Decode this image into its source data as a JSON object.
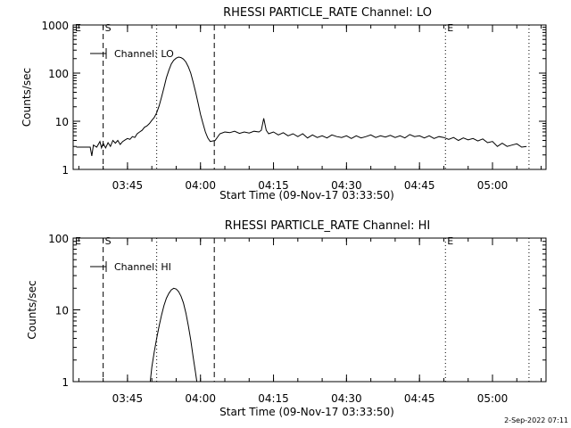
{
  "footer_timestamp": "2-Sep-2022 07:11",
  "chart_data": [
    {
      "type": "line",
      "title": "RHESSI PARTICLE_RATE Channel: LO",
      "xlabel": "Start Time (09-Nov-17 03:33:50)",
      "ylabel": "Counts/sec",
      "yscale": "log",
      "ylim": [
        1,
        1000
      ],
      "yticks": [
        "1",
        "10",
        "100",
        "1000"
      ],
      "xticks": [
        "03:45",
        "04:00",
        "04:15",
        "04:30",
        "04:45",
        "05:00"
      ],
      "xlim": [
        "03:33:50",
        "05:11:00"
      ],
      "legend": {
        "label": "Channel: LO",
        "position": "top-left"
      },
      "markers": [
        {
          "label": "E",
          "time": "03:33:50",
          "style": "none"
        },
        {
          "label": "S",
          "time": "03:40:00",
          "style": "dashed"
        },
        {
          "label": "",
          "time": "03:51:00",
          "style": "dotted"
        },
        {
          "label": "",
          "time": "04:02:50",
          "style": "dashed"
        },
        {
          "label": "E",
          "time": "04:50:20",
          "style": "dotted"
        },
        {
          "label": "",
          "time": "05:07:30",
          "style": "dotted"
        }
      ],
      "series": [
        {
          "name": "Channel: LO",
          "points": [
            [
              "03:34:30",
              2.9
            ],
            [
              "03:35:30",
              2.9
            ],
            [
              "03:36:30",
              2.9
            ],
            [
              "03:37:20",
              2.9
            ],
            [
              "03:37:40",
              1.9
            ],
            [
              "03:38:00",
              3.2
            ],
            [
              "03:38:40",
              2.9
            ],
            [
              "03:39:20",
              3.8
            ],
            [
              "03:39:40",
              2.8
            ],
            [
              "03:40:00",
              3.5
            ],
            [
              "03:40:30",
              2.8
            ],
            [
              "03:41:00",
              3.6
            ],
            [
              "03:41:30",
              3.0
            ],
            [
              "03:42:00",
              4.0
            ],
            [
              "03:42:30",
              3.5
            ],
            [
              "03:43:00",
              4.0
            ],
            [
              "03:43:30",
              3.3
            ],
            [
              "03:44:00",
              3.8
            ],
            [
              "03:44:30",
              4.1
            ],
            [
              "03:45:00",
              4.4
            ],
            [
              "03:45:30",
              4.2
            ],
            [
              "03:46:00",
              4.8
            ],
            [
              "03:46:30",
              4.6
            ],
            [
              "03:47:00",
              5.5
            ],
            [
              "03:47:30",
              6.0
            ],
            [
              "03:48:00",
              6.5
            ],
            [
              "03:48:30",
              7.5
            ],
            [
              "03:49:00",
              8.0
            ],
            [
              "03:49:30",
              9.0
            ],
            [
              "03:50:00",
              10.5
            ],
            [
              "03:50:30",
              12
            ],
            [
              "03:51:00",
              15
            ],
            [
              "03:51:30",
              21
            ],
            [
              "03:52:00",
              32
            ],
            [
              "03:52:30",
              50
            ],
            [
              "03:53:00",
              80
            ],
            [
              "03:53:30",
              115
            ],
            [
              "03:54:00",
              155
            ],
            [
              "03:54:30",
              185
            ],
            [
              "03:55:00",
              205
            ],
            [
              "03:55:30",
              215
            ],
            [
              "03:56:00",
              210
            ],
            [
              "03:56:30",
              195
            ],
            [
              "03:57:00",
              170
            ],
            [
              "03:57:30",
              135
            ],
            [
              "03:58:00",
              100
            ],
            [
              "03:58:30",
              65
            ],
            [
              "03:59:00",
              40
            ],
            [
              "03:59:30",
              24
            ],
            [
              "04:00:00",
              14
            ],
            [
              "04:00:30",
              9
            ],
            [
              "04:01:00",
              6
            ],
            [
              "04:01:30",
              4.5
            ],
            [
              "04:02:00",
              3.8
            ],
            [
              "04:03:00",
              4.0
            ],
            [
              "04:04:00",
              5.5
            ],
            [
              "04:05:00",
              6.0
            ],
            [
              "04:06:00",
              5.8
            ],
            [
              "04:07:00",
              6.2
            ],
            [
              "04:08:00",
              5.6
            ],
            [
              "04:09:00",
              6.0
            ],
            [
              "04:10:00",
              5.7
            ],
            [
              "04:11:00",
              6.2
            ],
            [
              "04:12:00",
              6.0
            ],
            [
              "04:12:30",
              6.5
            ],
            [
              "04:13:00",
              11.5
            ],
            [
              "04:13:30",
              6.5
            ],
            [
              "04:14:00",
              5.5
            ],
            [
              "04:15:00",
              6.0
            ],
            [
              "04:16:00",
              5.2
            ],
            [
              "04:17:00",
              5.8
            ],
            [
              "04:18:00",
              5.0
            ],
            [
              "04:19:00",
              5.5
            ],
            [
              "04:20:00",
              4.8
            ],
            [
              "04:21:00",
              5.5
            ],
            [
              "04:22:00",
              4.5
            ],
            [
              "04:23:00",
              5.2
            ],
            [
              "04:24:00",
              4.6
            ],
            [
              "04:25:00",
              5.0
            ],
            [
              "04:26:00",
              4.5
            ],
            [
              "04:27:00",
              5.2
            ],
            [
              "04:28:00",
              4.8
            ],
            [
              "04:29:00",
              4.6
            ],
            [
              "04:30:00",
              5.0
            ],
            [
              "04:31:00",
              4.4
            ],
            [
              "04:32:00",
              5.0
            ],
            [
              "04:33:00",
              4.5
            ],
            [
              "04:34:00",
              4.8
            ],
            [
              "04:35:00",
              5.2
            ],
            [
              "04:36:00",
              4.6
            ],
            [
              "04:37:00",
              5.0
            ],
            [
              "04:38:00",
              4.7
            ],
            [
              "04:39:00",
              5.1
            ],
            [
              "04:40:00",
              4.6
            ],
            [
              "04:41:00",
              5.0
            ],
            [
              "04:42:00",
              4.5
            ],
            [
              "04:43:00",
              5.3
            ],
            [
              "04:44:00",
              4.8
            ],
            [
              "04:45:00",
              5.0
            ],
            [
              "04:46:00",
              4.5
            ],
            [
              "04:47:00",
              5.0
            ],
            [
              "04:48:00",
              4.4
            ],
            [
              "04:49:00",
              4.8
            ],
            [
              "04:50:00",
              4.6
            ],
            [
              "04:51:00",
              4.2
            ],
            [
              "04:52:00",
              4.6
            ],
            [
              "04:53:00",
              4.0
            ],
            [
              "04:54:00",
              4.5
            ],
            [
              "04:55:00",
              4.1
            ],
            [
              "04:56:00",
              4.4
            ],
            [
              "04:57:00",
              3.9
            ],
            [
              "04:58:00",
              4.3
            ],
            [
              "04:59:00",
              3.6
            ],
            [
              "05:00:00",
              3.8
            ],
            [
              "05:01:00",
              3.0
            ],
            [
              "05:02:00",
              3.5
            ],
            [
              "05:03:00",
              3.0
            ],
            [
              "05:04:00",
              3.2
            ],
            [
              "05:05:00",
              3.4
            ],
            [
              "05:06:00",
              2.9
            ],
            [
              "05:07:00",
              3.0
            ]
          ]
        }
      ]
    },
    {
      "type": "line",
      "title": "RHESSI PARTICLE_RATE Channel: HI",
      "xlabel": "Start Time (09-Nov-17 03:33:50)",
      "ylabel": "Counts/sec",
      "yscale": "log",
      "ylim": [
        1,
        100
      ],
      "yticks": [
        "1",
        "10",
        "100"
      ],
      "xticks": [
        "03:45",
        "04:00",
        "04:15",
        "04:30",
        "04:45",
        "05:00"
      ],
      "xlim": [
        "03:33:50",
        "05:11:00"
      ],
      "legend": {
        "label": "Channel: HI",
        "position": "top-left"
      },
      "markers": [
        {
          "label": "E",
          "time": "03:33:50",
          "style": "none"
        },
        {
          "label": "S",
          "time": "03:40:00",
          "style": "dashed"
        },
        {
          "label": "",
          "time": "03:51:00",
          "style": "dotted"
        },
        {
          "label": "",
          "time": "04:02:50",
          "style": "dashed"
        },
        {
          "label": "E",
          "time": "04:50:20",
          "style": "dotted"
        },
        {
          "label": "",
          "time": "05:07:30",
          "style": "dotted"
        }
      ],
      "series": [
        {
          "name": "Channel: HI",
          "points": [
            [
              "03:49:40",
              1.0
            ],
            [
              "03:50:00",
              1.6
            ],
            [
              "03:50:30",
              2.6
            ],
            [
              "03:51:00",
              4.0
            ],
            [
              "03:51:30",
              6.0
            ],
            [
              "03:52:00",
              8.5
            ],
            [
              "03:52:30",
              11.5
            ],
            [
              "03:53:00",
              14.5
            ],
            [
              "03:53:30",
              17
            ],
            [
              "03:54:00",
              19
            ],
            [
              "03:54:30",
              20
            ],
            [
              "03:55:00",
              19.5
            ],
            [
              "03:55:30",
              18
            ],
            [
              "03:56:00",
              15.5
            ],
            [
              "03:56:30",
              12.5
            ],
            [
              "03:57:00",
              9
            ],
            [
              "03:57:30",
              6
            ],
            [
              "03:58:00",
              3.8
            ],
            [
              "03:58:30",
              2.2
            ],
            [
              "03:59:00",
              1.3
            ],
            [
              "03:59:15",
              1.0
            ]
          ]
        }
      ]
    }
  ]
}
